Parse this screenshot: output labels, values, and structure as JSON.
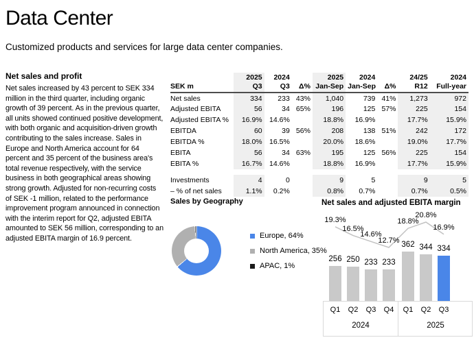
{
  "page": {
    "title": "Data Center",
    "subtitle": "Customized products and services for large data center companies."
  },
  "narrative": {
    "heading": "Net sales and profit",
    "body": "Net sales increased by 43 percent to SEK 334 million in the third quarter, including organic growth of 39 percent. As in the previous quarter, all units showed continued positive development, with both organic and acquisition-driven growth contributing to the sales increase. Sales in Europe and North America account for 64 percent and 35 percent of the business area's total revenue respectively, with the service business in both geographical areas showing strong growth. Adjusted for non-recurring costs of SEK -1 million, related to the performance improvement program announced in connection with the interim report for Q2, adjusted EBITA amounted to SEK 56 million, corresponding to an adjusted EBITA margin of 16.9 percent."
  },
  "financial_table": {
    "unit_label": "SEK m",
    "columns": [
      {
        "period": "2025",
        "sub": "Q3",
        "shaded": true,
        "header_shaded": true
      },
      {
        "period": "2024",
        "sub": "Q3",
        "shaded": false,
        "header_shaded": false
      },
      {
        "period": "",
        "sub": "Δ%",
        "shaded": false,
        "header_shaded": false
      },
      {
        "period": "2025",
        "sub": "Jan-Sep",
        "shaded": true,
        "header_shaded": true
      },
      {
        "period": "2024",
        "sub": "Jan-Sep",
        "shaded": false,
        "header_shaded": false
      },
      {
        "period": "",
        "sub": "Δ%",
        "shaded": false,
        "header_shaded": false
      },
      {
        "period": "24/25",
        "sub": "R12",
        "shaded": true,
        "header_shaded": false
      },
      {
        "period": "2024",
        "sub": "Full-year",
        "shaded": true,
        "header_shaded": false
      }
    ],
    "rows": [
      {
        "label": "Net sales",
        "values": [
          "334",
          "233",
          "43%",
          "1,040",
          "739",
          "41%",
          "1,273",
          "972"
        ]
      },
      {
        "label": "Adjusted EBITA",
        "values": [
          "56",
          "34",
          "65%",
          "196",
          "125",
          "57%",
          "225",
          "154"
        ]
      },
      {
        "label": "Adjusted EBITA %",
        "values": [
          "16.9%",
          "14.6%",
          "",
          "18.8%",
          "16.9%",
          "",
          "17.7%",
          "15.9%"
        ]
      },
      {
        "label": "EBITDA",
        "values": [
          "60",
          "39",
          "56%",
          "208",
          "138",
          "51%",
          "242",
          "172"
        ]
      },
      {
        "label": "EBITDA %",
        "values": [
          "18.0%",
          "16.5%",
          "",
          "20.0%",
          "18.6%",
          "",
          "19.0%",
          "17.7%"
        ]
      },
      {
        "label": "EBITA",
        "values": [
          "56",
          "34",
          "63%",
          "195",
          "125",
          "56%",
          "225",
          "154"
        ]
      },
      {
        "label": "EBITA %",
        "values": [
          "16.7%",
          "14.6%",
          "",
          "18.8%",
          "16.9%",
          "",
          "17.7%",
          "15.9%"
        ]
      },
      {
        "label": "Investments",
        "values": [
          "4",
          "0",
          "",
          "9",
          "5",
          "",
          "9",
          "5"
        ]
      },
      {
        "label": "– % of net sales",
        "values": [
          "1.1%",
          "0.2%",
          "",
          "0.8%",
          "0.7%",
          "",
          "0.7%",
          "0.5%"
        ]
      }
    ],
    "spacer_after_row": 6
  },
  "chart_data": [
    {
      "type": "pie",
      "donut": true,
      "title": "Sales by Geography",
      "legend_position": "right",
      "slices": [
        {
          "label": "Europe",
          "value": 64,
          "color": "#4a86e8"
        },
        {
          "label": "North America",
          "value": 35,
          "color": "#b0b0b0"
        },
        {
          "label": "APAC",
          "value": 1,
          "color": "#1a1a1a"
        }
      ]
    },
    {
      "type": "bar",
      "title": "Net sales and adjusted EBITA margin",
      "categories": [
        "Q1",
        "Q2",
        "Q3",
        "Q4",
        "Q1",
        "Q2",
        "Q3"
      ],
      "year_groups": [
        {
          "label": "2024",
          "count": 4
        },
        {
          "label": "2025",
          "count": 3
        }
      ],
      "series": [
        {
          "name": "Net sales (SEK m)",
          "type": "bar",
          "values": [
            256,
            250,
            233,
            233,
            362,
            344,
            334
          ]
        },
        {
          "name": "Adjusted EBITA margin (%)",
          "type": "line",
          "values": [
            19.3,
            16.5,
            14.6,
            12.7,
            18.8,
            20.8,
            16.9
          ]
        }
      ],
      "highlight_index": 6,
      "bar_color": "#c9c9c9",
      "highlight_color": "#4a86e8",
      "line_color": "#c2c2c2",
      "grid": false,
      "legend": false
    }
  ]
}
